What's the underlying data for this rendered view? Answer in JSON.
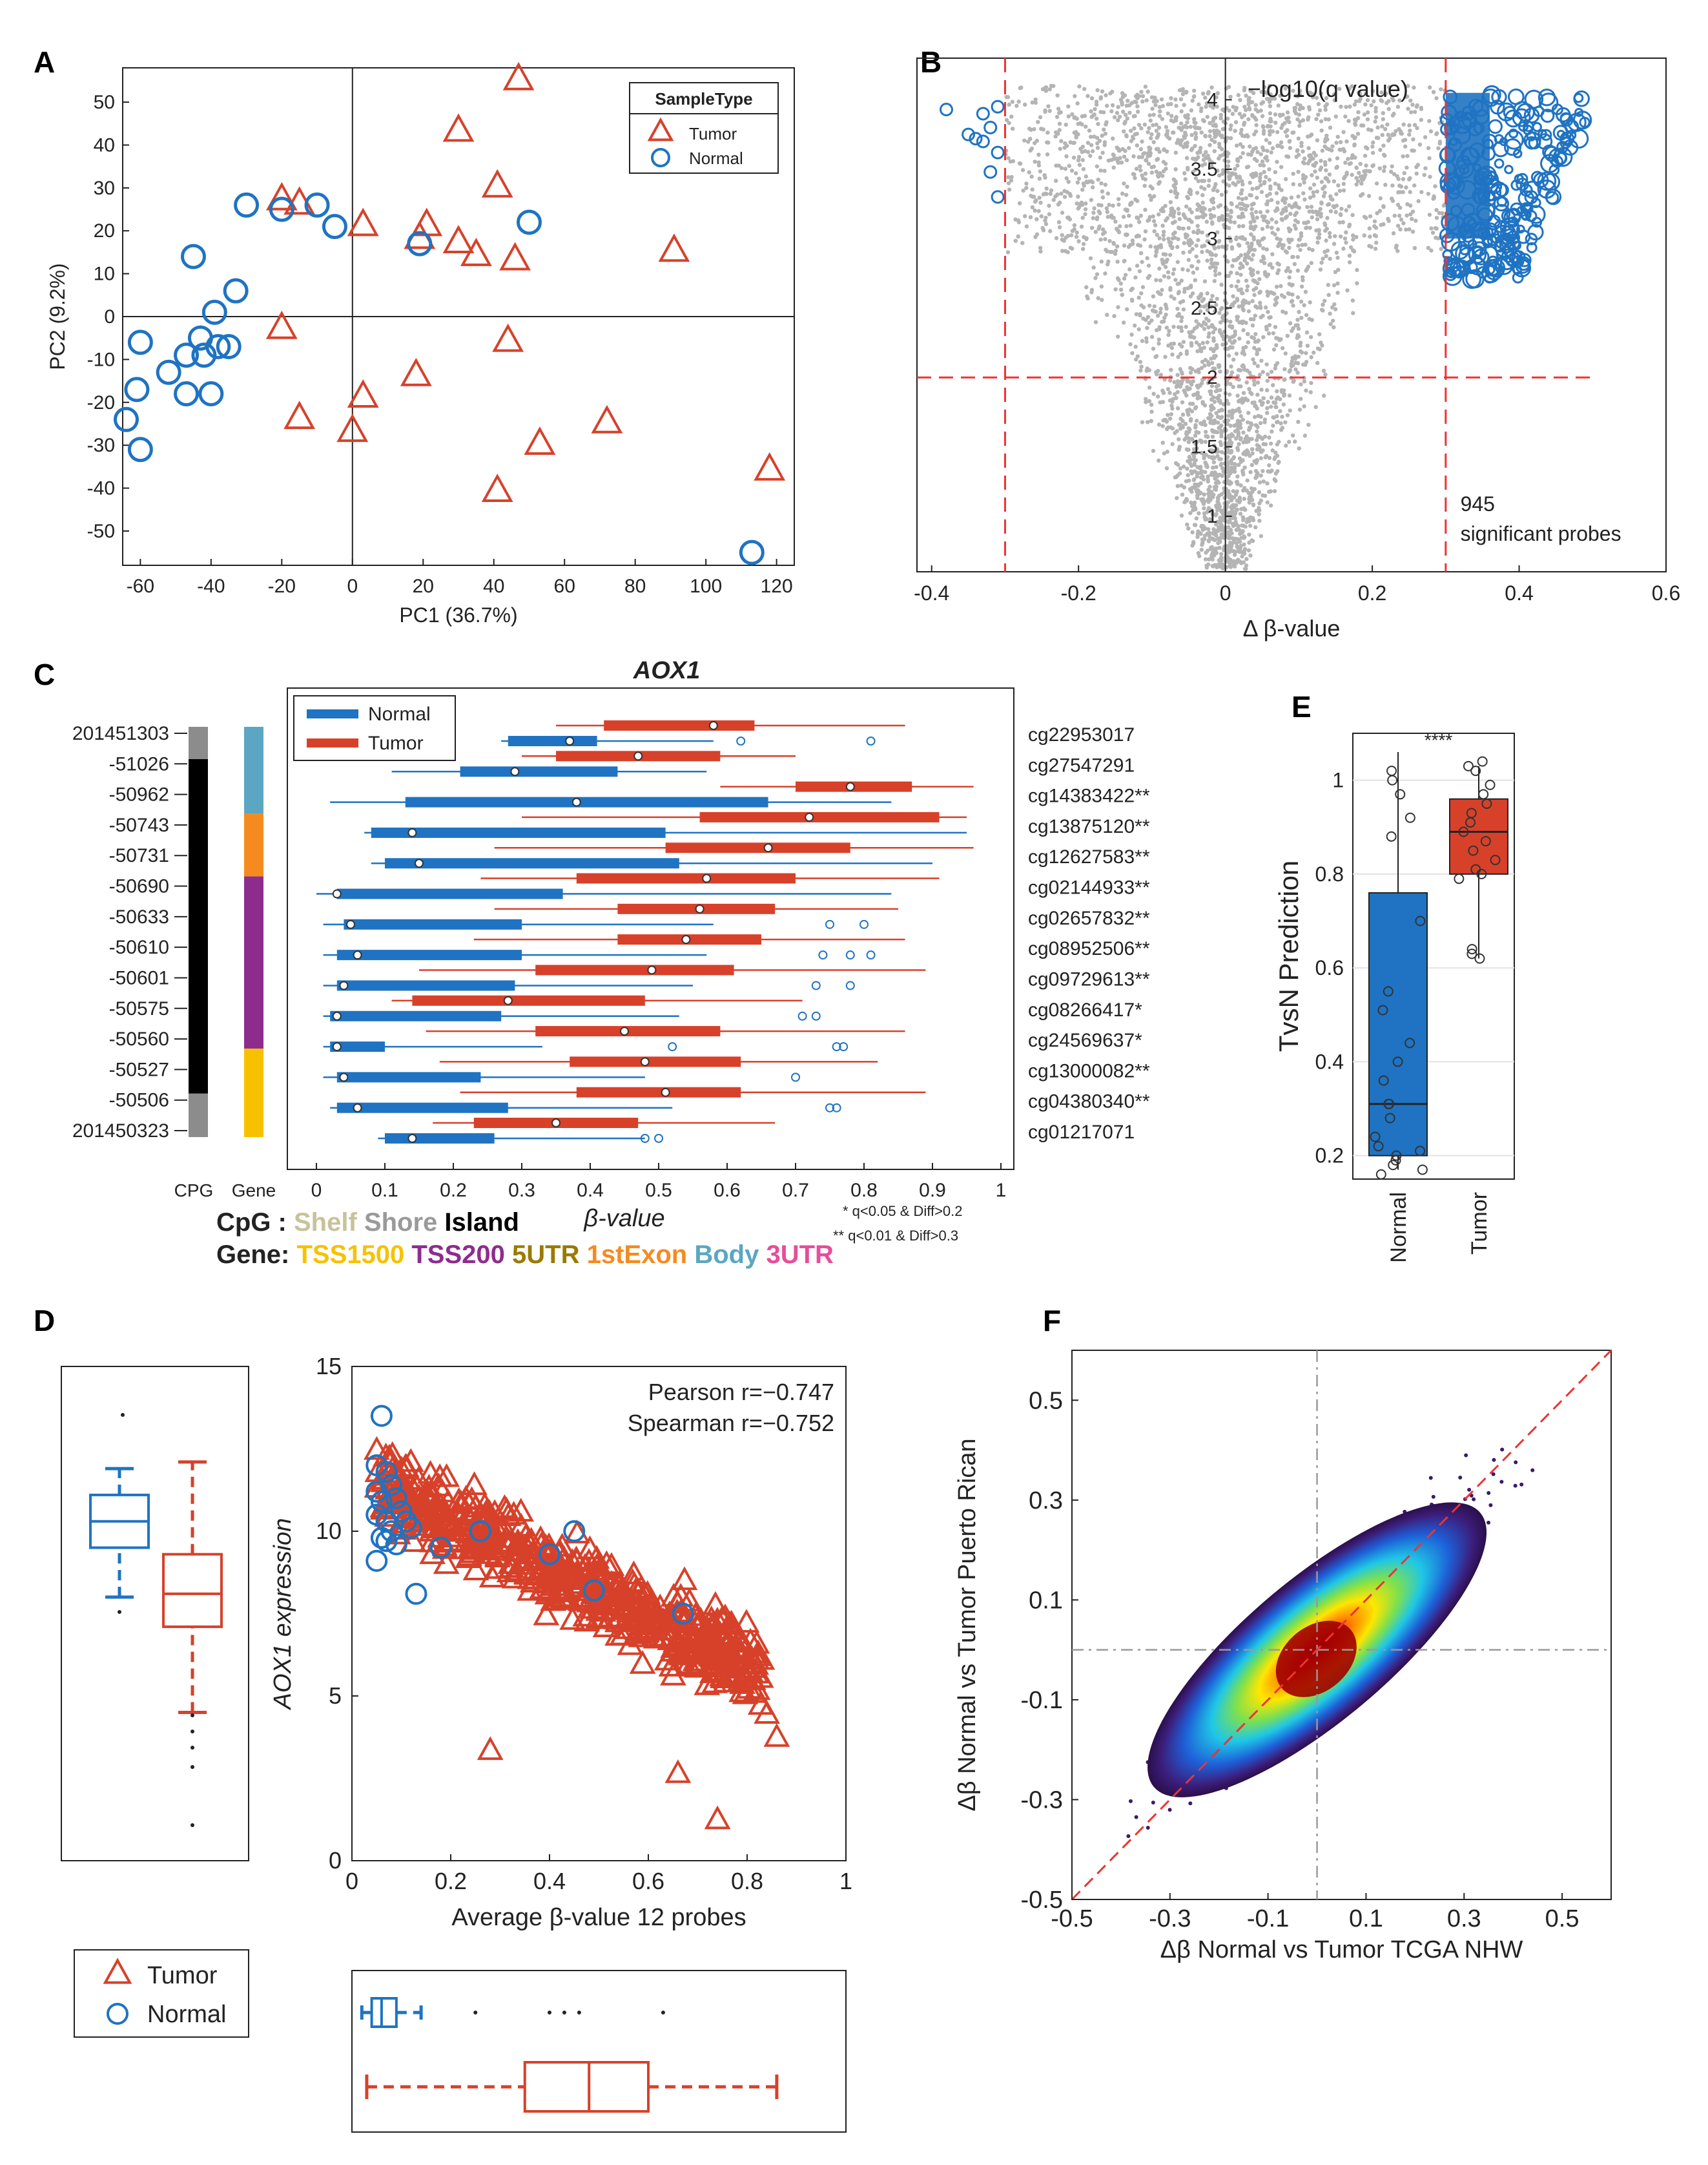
{
  "chart_data": [
    {
      "panel": "A",
      "type": "scatter",
      "xlabel": "PC1 (36.7%)",
      "ylabel": "PC2 (9.2%)",
      "xlim": [
        -65,
        125
      ],
      "ylim": [
        -58,
        58
      ],
      "xticks": [
        "-60",
        "-40",
        "-20",
        "0",
        "20",
        "40",
        "60",
        "80",
        "100",
        "120"
      ],
      "yticks": [
        "-50",
        "-40",
        "-30",
        "-20",
        "-10",
        "0",
        "10",
        "20",
        "30",
        "40",
        "50"
      ],
      "legend": {
        "title": "SampleType",
        "entries": [
          "Tumor",
          "Normal"
        ]
      },
      "series": [
        {
          "name": "Tumor",
          "points": [
            [
              47,
              55
            ],
            [
              30,
              43
            ],
            [
              -20,
              27
            ],
            [
              -15,
              26
            ],
            [
              41,
              30
            ],
            [
              3,
              21
            ],
            [
              21,
              21
            ],
            [
              19,
              18
            ],
            [
              30,
              17
            ],
            [
              35,
              14
            ],
            [
              46,
              13
            ],
            [
              91,
              15
            ],
            [
              -20,
              -3
            ],
            [
              44,
              -6
            ],
            [
              18,
              -14
            ],
            [
              -15,
              -24
            ],
            [
              3,
              -19
            ],
            [
              72,
              -25
            ],
            [
              0,
              -27
            ],
            [
              53,
              -30
            ],
            [
              118,
              -36
            ],
            [
              41,
              -41
            ]
          ]
        },
        {
          "name": "Normal",
          "points": [
            [
              -30,
              26
            ],
            [
              -10,
              26
            ],
            [
              -20,
              25
            ],
            [
              -5,
              21
            ],
            [
              19,
              17
            ],
            [
              50,
              22
            ],
            [
              -45,
              14
            ],
            [
              -33,
              6
            ],
            [
              -39,
              1
            ],
            [
              -43,
              -5
            ],
            [
              -38,
              -7
            ],
            [
              -60,
              -6
            ],
            [
              -35,
              -7
            ],
            [
              -47,
              -9
            ],
            [
              -52,
              -13
            ],
            [
              -42,
              -9
            ],
            [
              -61,
              -17
            ],
            [
              -47,
              -18
            ],
            [
              -40,
              -18
            ],
            [
              -64,
              -24
            ],
            [
              -60,
              -31
            ],
            [
              113,
              -55
            ]
          ]
        }
      ]
    },
    {
      "panel": "B",
      "type": "scatter",
      "xlabel": "Δ β-value",
      "ylabel": "−log10(q value)",
      "xlim": [
        -0.42,
        0.6
      ],
      "ylim": [
        0.6,
        4.3
      ],
      "xticks": [
        "-0.4",
        "-0.2",
        "0",
        "0.2",
        "0.4",
        "0.6"
      ],
      "yticks": [
        "1",
        "1.5",
        "2",
        "2.5",
        "3",
        "3.5",
        "4"
      ],
      "thresholds": {
        "x": [
          -0.3,
          0.3
        ],
        "y": 2
      },
      "annotation": [
        "945",
        "significant probes"
      ]
    },
    {
      "panel": "C",
      "type": "boxplot",
      "title": "AOX1",
      "xlabel": "β-value",
      "xlim": [
        0,
        1
      ],
      "xticks": [
        "0",
        "0.1",
        "0.2",
        "0.3",
        "0.4",
        "0.5",
        "0.6",
        "0.7",
        "0.8",
        "0.9",
        "1"
      ],
      "legend": [
        "Normal",
        "Tumor"
      ],
      "strip_labels": [
        "CPG",
        "Gene"
      ],
      "positions": [
        "201451303",
        "-51026",
        "-50962",
        "-50743",
        "-50731",
        "-50690",
        "-50633",
        "-50610",
        "-50601",
        "-50575",
        "-50560",
        "-50527",
        "-50506",
        "201450323"
      ],
      "cpg_legend": {
        "label": "CpG :",
        "items": [
          "Shelf",
          "Shore",
          "Island"
        ]
      },
      "gene_legend": {
        "label": "Gene:",
        "items": [
          "TSS1500",
          "TSS200",
          "5UTR",
          "1stExon",
          "Body",
          "3UTR"
        ]
      },
      "footnotes": [
        "* q<0.05 & Diff>0.2",
        "** q<0.01 & Diff>0.3"
      ],
      "probes": [
        {
          "id": "cg22953017",
          "normal": {
            "wl": 0.27,
            "q1": 0.28,
            "med": 0.37,
            "q3": 0.41,
            "wh": 0.58
          },
          "tumor": {
            "wl": 0.35,
            "q1": 0.42,
            "med": 0.58,
            "q3": 0.64,
            "wh": 0.86
          }
        },
        {
          "id": "cg27547291",
          "normal": {
            "wl": 0.11,
            "q1": 0.21,
            "med": 0.29,
            "q3": 0.44,
            "wh": 0.57
          },
          "tumor": {
            "wl": 0.3,
            "q1": 0.35,
            "med": 0.47,
            "q3": 0.59,
            "wh": 0.7
          }
        },
        {
          "id": "cg14383422**",
          "normal": {
            "wl": 0.02,
            "q1": 0.13,
            "med": 0.38,
            "q3": 0.66,
            "wh": 0.84
          },
          "tumor": {
            "wl": 0.59,
            "q1": 0.7,
            "med": 0.78,
            "q3": 0.87,
            "wh": 0.96
          }
        },
        {
          "id": "cg13875120**",
          "normal": {
            "wl": 0.07,
            "q1": 0.08,
            "med": 0.14,
            "q3": 0.51,
            "wh": 0.95
          },
          "tumor": {
            "wl": 0.3,
            "q1": 0.56,
            "med": 0.72,
            "q3": 0.91,
            "wh": 0.95
          }
        },
        {
          "id": "cg12627583**",
          "normal": {
            "wl": 0.08,
            "q1": 0.1,
            "med": 0.15,
            "q3": 0.53,
            "wh": 0.9
          },
          "tumor": {
            "wl": 0.26,
            "q1": 0.51,
            "med": 0.66,
            "q3": 0.78,
            "wh": 0.96
          }
        },
        {
          "id": "cg02144933**",
          "normal": {
            "wl": 0.0,
            "q1": 0.03,
            "med": 0.03,
            "q3": 0.36,
            "wh": 0.84
          },
          "tumor": {
            "wl": 0.24,
            "q1": 0.38,
            "med": 0.57,
            "q3": 0.7,
            "wh": 0.91
          }
        },
        {
          "id": "cg02657832**",
          "normal": {
            "wl": 0.01,
            "q1": 0.04,
            "med": 0.05,
            "q3": 0.3,
            "wh": 0.58
          },
          "tumor": {
            "wl": 0.26,
            "q1": 0.44,
            "med": 0.56,
            "q3": 0.67,
            "wh": 0.85
          }
        },
        {
          "id": "cg08952506**",
          "normal": {
            "wl": 0.01,
            "q1": 0.03,
            "med": 0.06,
            "q3": 0.3,
            "wh": 0.57
          },
          "tumor": {
            "wl": 0.23,
            "q1": 0.44,
            "med": 0.54,
            "q3": 0.65,
            "wh": 0.86
          }
        },
        {
          "id": "cg09729613**",
          "normal": {
            "wl": 0.01,
            "q1": 0.03,
            "med": 0.04,
            "q3": 0.29,
            "wh": 0.55
          },
          "tumor": {
            "wl": 0.15,
            "q1": 0.32,
            "med": 0.49,
            "q3": 0.61,
            "wh": 0.89
          }
        },
        {
          "id": "cg08266417*",
          "normal": {
            "wl": 0.01,
            "q1": 0.02,
            "med": 0.03,
            "q3": 0.27,
            "wh": 0.53
          },
          "tumor": {
            "wl": 0.11,
            "q1": 0.14,
            "med": 0.28,
            "q3": 0.48,
            "wh": 0.71
          }
        },
        {
          "id": "cg24569637*",
          "normal": {
            "wl": 0.01,
            "q1": 0.02,
            "med": 0.03,
            "q3": 0.1,
            "wh": 0.33
          },
          "tumor": {
            "wl": 0.16,
            "q1": 0.32,
            "med": 0.45,
            "q3": 0.59,
            "wh": 0.86
          }
        },
        {
          "id": "cg13000082**",
          "normal": {
            "wl": 0.01,
            "q1": 0.03,
            "med": 0.04,
            "q3": 0.24,
            "wh": 0.48
          },
          "tumor": {
            "wl": 0.18,
            "q1": 0.37,
            "med": 0.48,
            "q3": 0.62,
            "wh": 0.82
          }
        },
        {
          "id": "cg04380340**",
          "normal": {
            "wl": 0.02,
            "q1": 0.03,
            "med": 0.06,
            "q3": 0.28,
            "wh": 0.52
          },
          "tumor": {
            "wl": 0.21,
            "q1": 0.38,
            "med": 0.51,
            "q3": 0.62,
            "wh": 0.89
          }
        },
        {
          "id": "cg01217071",
          "normal": {
            "wl": 0.09,
            "q1": 0.1,
            "med": 0.14,
            "q3": 0.26,
            "wh": 0.48
          },
          "tumor": {
            "wl": 0.17,
            "q1": 0.23,
            "med": 0.35,
            "q3": 0.47,
            "wh": 0.67
          }
        }
      ]
    },
    {
      "panel": "E",
      "type": "boxplot",
      "ylabel": "TvsN Prediction",
      "ylim": [
        0.15,
        1.1
      ],
      "yticks": [
        "0.2",
        "0.4",
        "0.6",
        "0.8",
        "1"
      ],
      "categories": [
        "Normal",
        "Tumor"
      ],
      "significance": "****",
      "boxes": [
        {
          "name": "Normal",
          "wl": 0.17,
          "q1": 0.2,
          "med": 0.31,
          "q3": 0.76,
          "wh": 1.06,
          "points": [
            1.02,
            1.0,
            0.97,
            0.92,
            0.88,
            0.7,
            0.55,
            0.51,
            0.44,
            0.4,
            0.36,
            0.31,
            0.31,
            0.28,
            0.24,
            0.22,
            0.21,
            0.2,
            0.19,
            0.18,
            0.17,
            0.16
          ]
        },
        {
          "name": "Tumor",
          "wl": 0.62,
          "q1": 0.8,
          "med": 0.89,
          "q3": 0.96,
          "wh": 1.03,
          "points": [
            1.04,
            1.03,
            1.02,
            0.99,
            0.97,
            0.95,
            0.93,
            0.91,
            0.89,
            0.87,
            0.85,
            0.83,
            0.81,
            0.8,
            0.79,
            0.64,
            0.63,
            0.62
          ]
        }
      ]
    },
    {
      "panel": "D",
      "type": "scatter",
      "xlabel": "Average β-value 12 probes",
      "ylabel": "AOX1 expression",
      "xlim": [
        0,
        1
      ],
      "ylim": [
        0,
        15
      ],
      "xticks": [
        "0",
        "0.2",
        "0.4",
        "0.6",
        "0.8",
        "1"
      ],
      "yticks": [
        "0",
        "5",
        "10",
        "15"
      ],
      "stats": [
        "Pearson r=−0.747",
        "Spearman r=−0.752"
      ],
      "legend": [
        "Tumor",
        "Normal"
      ],
      "normal_points": [
        [
          0.06,
          13.5
        ],
        [
          0.05,
          12.0
        ],
        [
          0.07,
          11.8
        ],
        [
          0.08,
          11.4
        ],
        [
          0.05,
          11.2
        ],
        [
          0.06,
          10.9
        ],
        [
          0.09,
          11.0
        ],
        [
          0.1,
          10.6
        ],
        [
          0.05,
          10.5
        ],
        [
          0.07,
          10.3
        ],
        [
          0.11,
          10.3
        ],
        [
          0.08,
          10.0
        ],
        [
          0.06,
          9.8
        ],
        [
          0.09,
          9.6
        ],
        [
          0.12,
          10.1
        ],
        [
          0.26,
          10.0
        ],
        [
          0.45,
          10.0
        ],
        [
          0.4,
          9.3
        ],
        [
          0.18,
          9.5
        ],
        [
          0.05,
          9.1
        ],
        [
          0.13,
          8.1
        ],
        [
          0.49,
          8.2
        ],
        [
          0.67,
          7.5
        ],
        [
          0.07,
          9.7
        ]
      ],
      "tumor_outliers": [
        [
          0.28,
          3.3
        ],
        [
          0.66,
          2.6
        ],
        [
          0.74,
          1.2
        ],
        [
          0.86,
          3.7
        ],
        [
          0.84,
          4.4
        ]
      ],
      "side_boxes": {
        "normal_y": {
          "wl": 8.0,
          "q1": 9.5,
          "med": 10.3,
          "q3": 11.1,
          "wh": 11.9
        },
        "tumor_y": {
          "wl": 4.5,
          "q1": 7.1,
          "med": 8.1,
          "q3": 9.3,
          "wh": 12.1
        },
        "normal_x": {
          "wl": 0.02,
          "q1": 0.04,
          "med": 0.06,
          "q3": 0.09,
          "wh": 0.14
        },
        "tumor_x": {
          "wl": 0.03,
          "q1": 0.35,
          "med": 0.48,
          "q3": 0.6,
          "wh": 0.86
        }
      }
    },
    {
      "panel": "F",
      "type": "heatmap",
      "xlabel": "Δβ Normal vs Tumor TCGA NHW",
      "ylabel": "Δβ Normal vs Tumor Puerto Rican",
      "xlim": [
        -0.5,
        0.6
      ],
      "ylim": [
        -0.5,
        0.6
      ],
      "xticks": [
        "-0.5",
        "-0.3",
        "-0.1",
        "0.1",
        "0.3",
        "0.5"
      ],
      "yticks": [
        "-0.5",
        "-0.3",
        "-0.1",
        "0.1",
        "0.3",
        "0.5"
      ]
    }
  ],
  "panel_labels": [
    "A",
    "B",
    "C",
    "D",
    "E",
    "F"
  ]
}
